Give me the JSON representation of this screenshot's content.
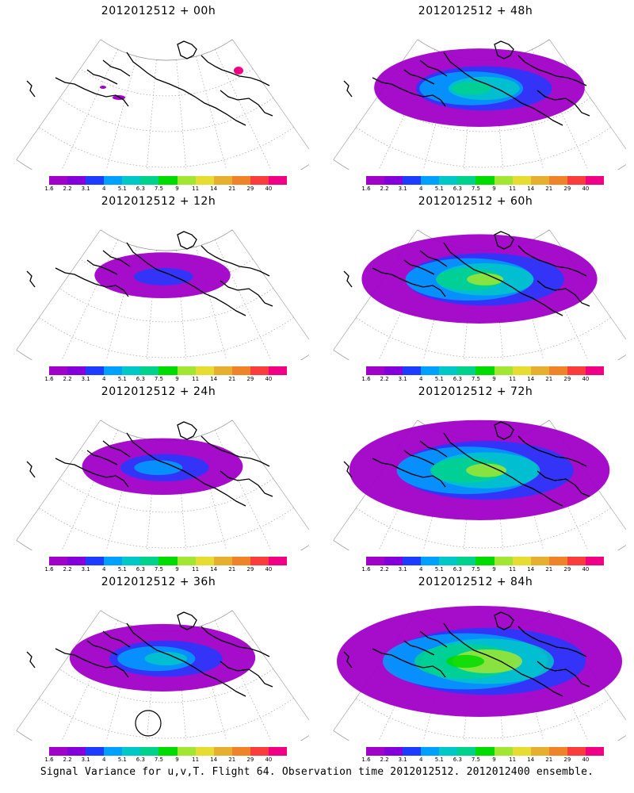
{
  "figure": {
    "footer": "Signal Variance for u,v,T. Flight 64. Observation time 2012012512. 2012012400 ensemble.",
    "colorbar": {
      "labels": [
        "1.6",
        "2.2",
        "3.1",
        "4",
        "5.1",
        "6.3",
        "7.5",
        "9",
        "11",
        "14",
        "21",
        "29",
        "40"
      ],
      "colors": [
        "#a000c8",
        "#8200dc",
        "#1e3cff",
        "#00a0ff",
        "#00c8c8",
        "#00d28c",
        "#00dc00",
        "#a0e632",
        "#e6dc32",
        "#e6af2d",
        "#f08228",
        "#fa3c3c",
        "#f00082"
      ]
    },
    "panels": [
      {
        "title": "2012012512 + 00h",
        "level": 0
      },
      {
        "title": "2012012512 + 12h",
        "level": 1
      },
      {
        "title": "2012012512 + 24h",
        "level": 2
      },
      {
        "title": "2012012512 + 36h",
        "level": 3,
        "highlight_circle": true
      },
      {
        "title": "2012012512 + 48h",
        "level": 4
      },
      {
        "title": "2012012512 + 60h",
        "level": 5
      },
      {
        "title": "2012012512 + 72h",
        "level": 6
      },
      {
        "title": "2012012512 + 84h",
        "level": 7
      }
    ]
  }
}
